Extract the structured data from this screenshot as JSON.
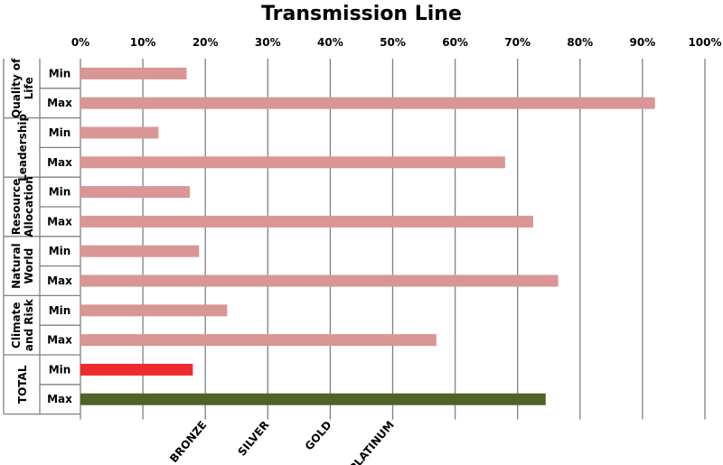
{
  "chart_data": {
    "type": "bar",
    "orientation": "horizontal",
    "title": "Transmission Line",
    "xlim": [
      0,
      100
    ],
    "x_ticks": [
      "0%",
      "10%",
      "20%",
      "30%",
      "40%",
      "50%",
      "60%",
      "70%",
      "80%",
      "90%",
      "100%"
    ],
    "x_tick_values": [
      0,
      10,
      20,
      30,
      40,
      50,
      60,
      70,
      80,
      90,
      100
    ],
    "grid": true,
    "legend": "none",
    "groups": [
      {
        "label": "Quality of Life",
        "label_lines": [
          "Quality of",
          "Life"
        ],
        "bars": [
          {
            "label": "Min",
            "value": 17
          },
          {
            "label": "Max",
            "value": 92
          }
        ]
      },
      {
        "label": "Leadership",
        "label_lines": [
          "Leadership"
        ],
        "bars": [
          {
            "label": "Min",
            "value": 12.5
          },
          {
            "label": "Max",
            "value": 68
          }
        ]
      },
      {
        "label": "Resource Allocation",
        "label_lines": [
          "Resource",
          "Allocation"
        ],
        "bars": [
          {
            "label": "Min",
            "value": 17.5
          },
          {
            "label": "Max",
            "value": 72.5
          }
        ]
      },
      {
        "label": "Natural World",
        "label_lines": [
          "Natural",
          "World"
        ],
        "bars": [
          {
            "label": "Min",
            "value": 19
          },
          {
            "label": "Max",
            "value": 76.5
          }
        ]
      },
      {
        "label": "Climate and Risk",
        "label_lines": [
          "Climate",
          "and Risk"
        ],
        "bars": [
          {
            "label": "Min",
            "value": 23.5
          },
          {
            "label": "Max",
            "value": 57
          }
        ]
      },
      {
        "label": "TOTAL",
        "label_lines": [
          "TOTAL"
        ],
        "bars": [
          {
            "label": "Min",
            "value": 18
          },
          {
            "label": "Max",
            "value": 74.5
          }
        ]
      }
    ],
    "level_labels": [
      {
        "label": "BRONZE",
        "value": 20
      },
      {
        "label": "SILVER",
        "value": 30
      },
      {
        "label": "GOLD",
        "value": 40
      },
      {
        "label": "PLATINUM",
        "value": 50
      }
    ],
    "colors": {
      "default_bar": "#d99694",
      "total_min_bar": "#ee2a2e",
      "total_max_bar": "#4f6228",
      "grid": "#808080"
    }
  }
}
